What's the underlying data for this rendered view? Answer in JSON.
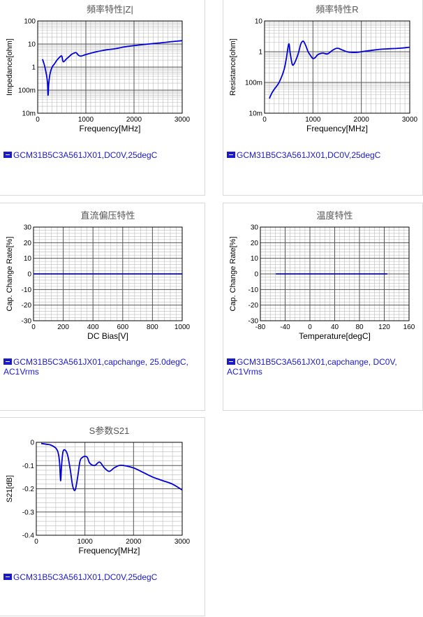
{
  "colors": {
    "series": "#0000dd",
    "legend": "#1a1acc",
    "grid_major": "#555555",
    "grid_minor": "#bbbbbb"
  },
  "chart_data": [
    {
      "type": "line",
      "title": "頻率特性|Z|",
      "xlabel": "Frequency[MHz]",
      "ylabel": "Impedance[ohm]",
      "xscale": "linear",
      "yscale": "log",
      "xlim": [
        0,
        3000
      ],
      "ylim": [
        0.01,
        100
      ],
      "xticks": [
        0,
        1000,
        2000,
        3000
      ],
      "xtick_labels": [
        "0",
        "1000",
        "2000",
        "3000"
      ],
      "yticks": [
        0.01,
        0.1,
        1,
        10,
        100
      ],
      "ytick_labels": [
        "10m",
        "100m",
        "1",
        "10",
        "100"
      ],
      "grid": true,
      "legend": "GCM31B5C3A561JX01,DC0V,25degC",
      "series": [
        {
          "x": [
            100,
            150,
            200,
            215,
            230,
            260,
            300,
            350,
            400,
            450,
            500,
            530,
            600,
            650,
            700,
            750,
            800,
            850,
            900,
            1000,
            1200,
            1400,
            1600,
            1800,
            2000,
            2200,
            2400,
            2600,
            2800,
            3000
          ],
          "values": [
            2.2,
            1.0,
            0.25,
            0.06,
            0.2,
            0.55,
            1.0,
            1.4,
            2.0,
            2.6,
            3.0,
            1.7,
            2.3,
            2.8,
            3.5,
            4.0,
            4.2,
            3.2,
            3.0,
            3.5,
            4.5,
            5.5,
            6.2,
            7.5,
            8.5,
            9.5,
            10.5,
            11.5,
            12.8,
            14.0
          ]
        }
      ]
    },
    {
      "type": "line",
      "title": "頻率特性R",
      "xlabel": "Frequency[MHz]",
      "ylabel": "Resistance[ohm]",
      "xscale": "linear",
      "yscale": "log",
      "xlim": [
        0,
        3000
      ],
      "ylim": [
        0.01,
        10
      ],
      "xticks": [
        0,
        1000,
        2000,
        3000
      ],
      "xtick_labels": [
        "0",
        "1000",
        "2000",
        "3000"
      ],
      "yticks": [
        0.01,
        0.1,
        1,
        10
      ],
      "ytick_labels": [
        "10m",
        "100m",
        "1",
        "10"
      ],
      "grid": true,
      "legend": "GCM31B5C3A561JX01,DC0V,25degC",
      "series": [
        {
          "x": [
            100,
            150,
            200,
            300,
            400,
            450,
            500,
            530,
            570,
            600,
            640,
            700,
            750,
            800,
            850,
            900,
            950,
            1000,
            1050,
            1100,
            1200,
            1300,
            1400,
            1500,
            1600,
            1700,
            1800,
            1900,
            2000,
            2200,
            2400,
            2600,
            2800,
            3000
          ],
          "values": [
            0.03,
            0.045,
            0.06,
            0.1,
            0.25,
            0.6,
            1.8,
            0.9,
            0.4,
            0.38,
            0.5,
            0.9,
            1.8,
            2.2,
            1.6,
            1.0,
            0.75,
            0.6,
            0.65,
            0.8,
            0.9,
            0.85,
            1.1,
            1.3,
            1.15,
            1.0,
            0.95,
            0.95,
            1.0,
            1.1,
            1.2,
            1.25,
            1.3,
            1.4
          ]
        }
      ]
    },
    {
      "type": "line",
      "title": "直流偏压特性",
      "xlabel": "DC Bias[V]",
      "ylabel": "Cap. Change Rate[%]",
      "xscale": "linear",
      "yscale": "linear",
      "xlim": [
        0,
        1000
      ],
      "ylim": [
        -30,
        30
      ],
      "xticks": [
        0,
        200,
        400,
        600,
        800,
        1000
      ],
      "xtick_labels": [
        "0",
        "200",
        "400",
        "600",
        "800",
        "1000"
      ],
      "yticks": [
        -30,
        -20,
        -10,
        0,
        10,
        20,
        30
      ],
      "ytick_labels": [
        "-30",
        "-20",
        "-10",
        "0",
        "10",
        "20",
        "30"
      ],
      "grid": true,
      "legend": "GCM31B5C3A561JX01,capchange, 25.0degC, AC1Vrms",
      "series": [
        {
          "x": [
            0,
            200,
            400,
            600,
            800,
            1000
          ],
          "values": [
            0,
            0,
            0,
            0,
            0,
            0
          ]
        }
      ]
    },
    {
      "type": "line",
      "title": "温度特性",
      "xlabel": "Temperature[degC]",
      "ylabel": "Cap. Change Rate[%]",
      "xscale": "linear",
      "yscale": "linear",
      "xlim": [
        -80,
        160
      ],
      "ylim": [
        -30,
        30
      ],
      "xticks": [
        -80,
        -40,
        0,
        40,
        80,
        120,
        160
      ],
      "xtick_labels": [
        "-80",
        "-40",
        "0",
        "40",
        "80",
        "120",
        "160"
      ],
      "yticks": [
        -30,
        -20,
        -10,
        0,
        10,
        20,
        30
      ],
      "ytick_labels": [
        "-30",
        "-20",
        "-10",
        "0",
        "10",
        "20",
        "30"
      ],
      "grid": true,
      "legend": "GCM31B5C3A561JX01,capchange, DC0V, AC1Vrms",
      "series": [
        {
          "x": [
            -55,
            0,
            125
          ],
          "values": [
            0,
            0,
            0
          ]
        }
      ]
    },
    {
      "type": "line",
      "title": "S参数S21",
      "xlabel": "Frequency[MHz]",
      "ylabel": "S21[dB]",
      "xscale": "linear",
      "yscale": "linear",
      "xlim": [
        0,
        3000
      ],
      "ylim": [
        -0.4,
        0
      ],
      "xticks": [
        0,
        1000,
        2000,
        3000
      ],
      "xtick_labels": [
        "0",
        "1000",
        "2000",
        "3000"
      ],
      "yticks": [
        -0.4,
        -0.3,
        -0.2,
        -0.1,
        0
      ],
      "ytick_labels": [
        "-0.4",
        "-0.3",
        "-0.2",
        "-0.1",
        "0"
      ],
      "grid": true,
      "legend": "GCM31B5C3A561JX01,DC0V,25degC",
      "series": [
        {
          "x": [
            100,
            200,
            300,
            400,
            450,
            480,
            500,
            520,
            550,
            600,
            650,
            700,
            750,
            800,
            850,
            900,
            950,
            1000,
            1050,
            1100,
            1200,
            1300,
            1400,
            1500,
            1600,
            1700,
            1800,
            2000,
            2200,
            2400,
            2600,
            2800,
            3000
          ],
          "values": [
            -0.005,
            -0.008,
            -0.012,
            -0.025,
            -0.045,
            -0.09,
            -0.165,
            -0.1,
            -0.04,
            -0.035,
            -0.06,
            -0.12,
            -0.19,
            -0.205,
            -0.15,
            -0.08,
            -0.065,
            -0.06,
            -0.065,
            -0.09,
            -0.1,
            -0.085,
            -0.11,
            -0.125,
            -0.11,
            -0.1,
            -0.1,
            -0.11,
            -0.13,
            -0.15,
            -0.165,
            -0.18,
            -0.205
          ]
        }
      ]
    }
  ]
}
